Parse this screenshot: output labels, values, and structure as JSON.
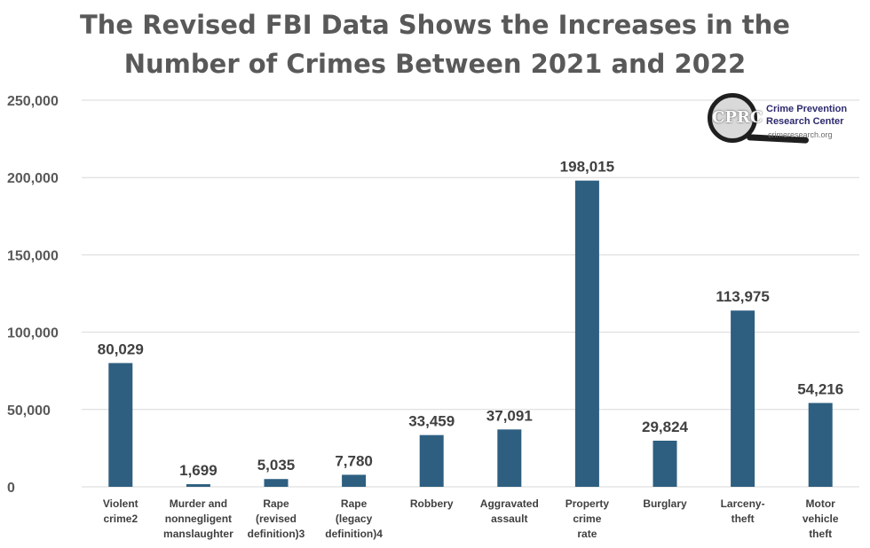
{
  "chart_data": {
    "type": "bar",
    "title": [
      "The Revised FBI Data Shows the Increases in the",
      "Number of Crimes Between 2021 and 2022"
    ],
    "categories": [
      [
        "Violent",
        "crime2"
      ],
      [
        "Murder and",
        "nonnegligent",
        "manslaughter"
      ],
      [
        "Rape",
        "(revised",
        "definition)3"
      ],
      [
        "Rape",
        "(legacy",
        "definition)4"
      ],
      [
        "Robbery"
      ],
      [
        "Aggravated",
        "assault"
      ],
      [
        "Property",
        "crime",
        "rate"
      ],
      [
        "Burglary"
      ],
      [
        "Larceny-",
        "theft"
      ],
      [
        "Motor",
        "vehicle",
        "theft"
      ]
    ],
    "values": [
      80029,
      1699,
      5035,
      7780,
      33459,
      37091,
      198015,
      29824,
      113975,
      54216
    ],
    "data_labels": [
      "80,029",
      "1,699",
      "5,035",
      "7,780",
      "33,459",
      "37,091",
      "198,015",
      "29,824",
      "113,975",
      "54,216"
    ],
    "yticks": [
      0,
      50000,
      100000,
      150000,
      200000,
      250000
    ],
    "ytick_labels": [
      "0",
      "50,000",
      "100,000",
      "150,000",
      "200,000",
      "250,000"
    ],
    "ylim": [
      0,
      250000
    ],
    "grid": true,
    "bar_color": "#2e5f80",
    "grid_color": "#d9d9d9"
  },
  "logo": {
    "monogram": "CPRC",
    "line1": "Crime Prevention",
    "line2": "Research Center",
    "url": "crimeresearch.org"
  }
}
